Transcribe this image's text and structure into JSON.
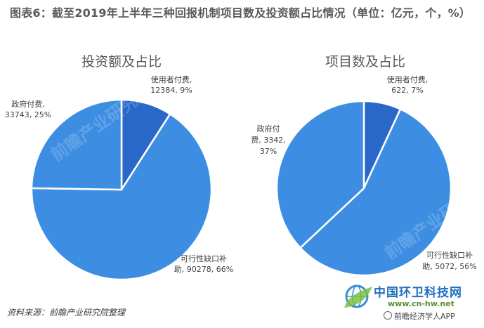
{
  "page": {
    "title": "图表6：截至2019年上半年三种回报机制项目数及投资额占比情况（单位：亿元，个，%）",
    "source": "资料来源：前瞻产业研究院整理"
  },
  "watermark": {
    "text": "前瞻产业研究院"
  },
  "brand": {
    "name": "中国环卫科技网",
    "url": "www.cn-hw.net",
    "app_credit": "前瞻经济学人APP"
  },
  "colors": {
    "slice_light": "#3d8ee2",
    "slice_dark": "#2968c9",
    "slice_stroke": "#ffffff"
  },
  "chart_data": [
    {
      "type": "pie",
      "title": "投资额及占比",
      "slices": [
        {
          "label_lines": [
            "使用者付费,",
            "12384, 9%"
          ],
          "value": 12384,
          "percent": 9,
          "color": "#2968c9"
        },
        {
          "label_lines": [
            "可行性缺口补",
            "助, 90278, 66%"
          ],
          "value": 90278,
          "percent": 66,
          "color": "#3d8ee2"
        },
        {
          "label_lines": [
            "政府付费,",
            "33743, 25%"
          ],
          "value": 33743,
          "percent": 25,
          "color": "#3d8ee2"
        }
      ]
    },
    {
      "type": "pie",
      "title": "项目数及占比",
      "slices": [
        {
          "label_lines": [
            "使用者付费,",
            "622, 7%"
          ],
          "value": 622,
          "percent": 7,
          "color": "#2968c9"
        },
        {
          "label_lines": [
            "可行性缺口补",
            "助, 5072, 56%"
          ],
          "value": 5072,
          "percent": 56,
          "color": "#3d8ee2"
        },
        {
          "label_lines": [
            "政府付",
            "费, 3342,",
            "37%"
          ],
          "value": 3342,
          "percent": 37,
          "color": "#3d8ee2"
        }
      ]
    }
  ]
}
